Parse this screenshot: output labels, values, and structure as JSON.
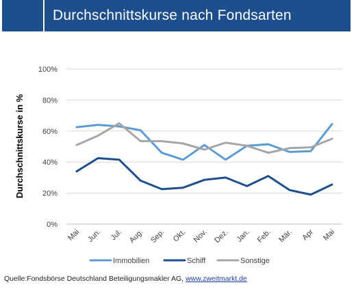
{
  "header": {
    "title": "Durchschnittskurse nach Fondsarten"
  },
  "chart_data": {
    "type": "line",
    "title": "Durchschnittskurse nach Fondsarten",
    "xlabel": "",
    "ylabel": "Durchschnittskurse in %",
    "ylim": [
      0,
      100
    ],
    "yticks": [
      "0%",
      "20%",
      "40%",
      "60%",
      "80%",
      "100%"
    ],
    "categories": [
      "Mai",
      "Jun.",
      "Jul.",
      "Aug.",
      "Sep.",
      "Okt.",
      "Nov.",
      "Dez.",
      "Jan.",
      "Feb.",
      "Mär.",
      "Apr",
      "Mai"
    ],
    "grid": true,
    "legend": "bottom",
    "series": [
      {
        "name": "Immobilien",
        "color": "#5b9bd5",
        "values": [
          62.5,
          64,
          63,
          60.5,
          46,
          41.5,
          51,
          41.5,
          50.5,
          51.5,
          46.5,
          47,
          64.5
        ]
      },
      {
        "name": "Schiff",
        "color": "#1d4f8e",
        "values": [
          34,
          42.5,
          41.5,
          28,
          22.5,
          23.5,
          28.5,
          30,
          24.5,
          31,
          22,
          19,
          25.5
        ]
      },
      {
        "name": "Sonstige",
        "color": "#a6a6a6",
        "values": [
          51,
          57,
          65,
          53.5,
          53.5,
          52,
          48,
          52.5,
          50.5,
          46,
          49,
          49.5,
          55
        ]
      }
    ]
  },
  "source": {
    "prefix": "Quelle:Fondsbörse Deutschland Beteiligungsmakler AG, ",
    "link": "www.zweitmarkt.de"
  }
}
